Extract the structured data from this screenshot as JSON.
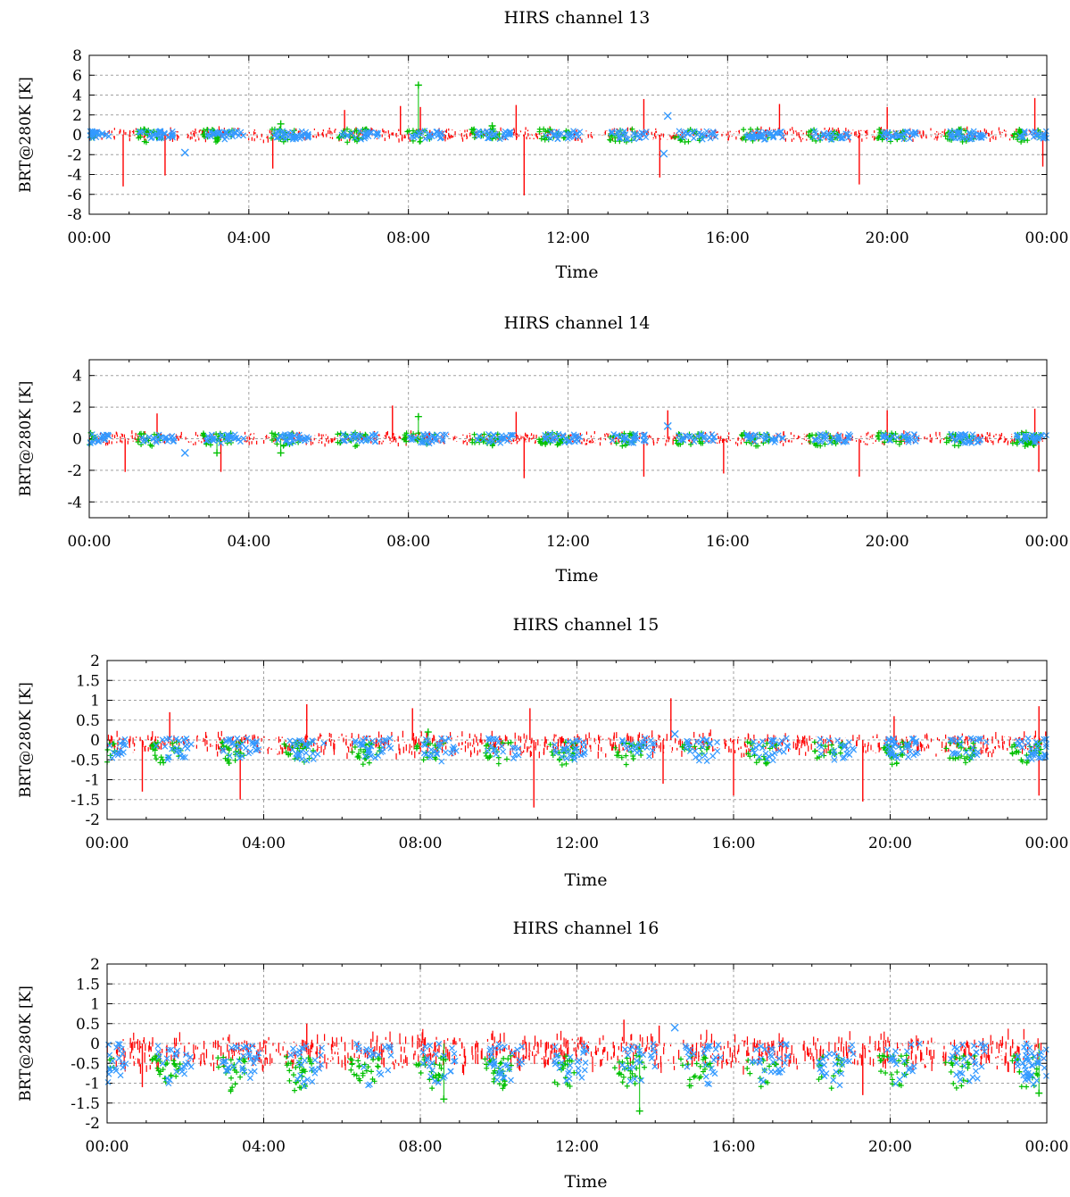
{
  "colors": {
    "red": "#ff0000",
    "green": "#00c000",
    "blue": "#3399ff",
    "grid": "#a0a0a0",
    "axis": "#000000"
  },
  "chart_data": [
    {
      "type": "scatter",
      "title": "HIRS channel 13",
      "xlabel": "Time",
      "ylabel": "BRT@280K [K]",
      "x_ticks": [
        "00:00",
        "04:00",
        "08:00",
        "12:00",
        "16:00",
        "20:00",
        "00:00"
      ],
      "y_ticks": [
        "-8",
        "-6",
        "-4",
        "-2",
        "0",
        "2",
        "4",
        "6",
        "8"
      ],
      "xlim": [
        "00:00",
        "24:00"
      ],
      "ylim": [
        -8,
        8
      ],
      "grid": true,
      "series": [
        {
          "color": "red",
          "marker": "line",
          "band": [
            -0.5,
            0.5
          ],
          "spikes": [
            [
              0.85,
              -5.2
            ],
            [
              1.9,
              -4.1
            ],
            [
              4.6,
              -3.4
            ],
            [
              6.4,
              2.5
            ],
            [
              7.8,
              2.9
            ],
            [
              8.3,
              2.8
            ],
            [
              10.9,
              -6.1
            ],
            [
              10.7,
              3.0
            ],
            [
              13.9,
              3.6
            ],
            [
              14.3,
              -4.3
            ],
            [
              17.3,
              3.1
            ],
            [
              19.3,
              -5.0
            ],
            [
              20.0,
              2.8
            ],
            [
              23.7,
              3.7
            ],
            [
              23.9,
              -3.2
            ]
          ]
        },
        {
          "color": "green",
          "marker": "plus",
          "band": [
            -0.8,
            0.6
          ],
          "spikes": [
            [
              8.25,
              5.0
            ],
            [
              4.8,
              1.1
            ],
            [
              10.1,
              0.9
            ]
          ]
        },
        {
          "color": "blue",
          "marker": "x",
          "band": [
            -0.5,
            0.4
          ],
          "spikes": [
            [
              14.5,
              1.9
            ],
            [
              14.4,
              -1.9
            ],
            [
              2.4,
              -1.8
            ]
          ]
        }
      ]
    },
    {
      "type": "scatter",
      "title": "HIRS channel 14",
      "xlabel": "Time",
      "ylabel": "BRT@280K [K]",
      "x_ticks": [
        "00:00",
        "04:00",
        "08:00",
        "12:00",
        "16:00",
        "20:00",
        "00:00"
      ],
      "y_ticks": [
        "-4",
        "-2",
        "0",
        "2",
        "4"
      ],
      "xlim": [
        "00:00",
        "24:00"
      ],
      "ylim": [
        -5,
        5
      ],
      "grid": true,
      "series": [
        {
          "color": "red",
          "marker": "line",
          "band": [
            -0.3,
            0.3
          ],
          "spikes": [
            [
              0.9,
              -2.1
            ],
            [
              1.7,
              1.6
            ],
            [
              3.3,
              -2.1
            ],
            [
              7.6,
              2.1
            ],
            [
              10.9,
              -2.5
            ],
            [
              10.7,
              1.7
            ],
            [
              13.9,
              -2.4
            ],
            [
              14.5,
              1.8
            ],
            [
              15.9,
              -2.2
            ],
            [
              19.3,
              -2.4
            ],
            [
              20.0,
              1.8
            ],
            [
              23.7,
              1.9
            ],
            [
              23.8,
              -2.1
            ]
          ]
        },
        {
          "color": "green",
          "marker": "plus",
          "band": [
            -0.5,
            0.4
          ],
          "spikes": [
            [
              8.25,
              1.4
            ],
            [
              3.2,
              -0.9
            ],
            [
              4.8,
              -0.9
            ]
          ]
        },
        {
          "color": "blue",
          "marker": "x",
          "band": [
            -0.3,
            0.3
          ],
          "spikes": [
            [
              14.5,
              0.8
            ],
            [
              2.4,
              -0.9
            ]
          ]
        }
      ]
    },
    {
      "type": "scatter",
      "title": "HIRS channel 15",
      "xlabel": "Time",
      "ylabel": "BRT@280K [K]",
      "x_ticks": [
        "00:00",
        "04:00",
        "08:00",
        "12:00",
        "16:00",
        "20:00",
        "00:00"
      ],
      "y_ticks": [
        "-2",
        "-1.5",
        "-1",
        "-0.5",
        "0",
        "0.5",
        "1",
        "1.5",
        "2"
      ],
      "xlim": [
        "00:00",
        "24:00"
      ],
      "ylim": [
        -2,
        2
      ],
      "grid": true,
      "series": [
        {
          "color": "red",
          "marker": "line",
          "band": [
            -0.35,
            0.1
          ],
          "spikes": [
            [
              0.9,
              -1.3
            ],
            [
              1.6,
              0.7
            ],
            [
              3.4,
              -1.5
            ],
            [
              5.1,
              0.9
            ],
            [
              7.8,
              0.8
            ],
            [
              10.9,
              -1.7
            ],
            [
              10.8,
              0.8
            ],
            [
              14.4,
              1.05
            ],
            [
              14.2,
              -1.1
            ],
            [
              16.0,
              -1.4
            ],
            [
              19.3,
              -1.55
            ],
            [
              20.1,
              0.6
            ],
            [
              23.8,
              0.85
            ],
            [
              23.8,
              -1.4
            ]
          ]
        },
        {
          "color": "green",
          "marker": "plus",
          "band": [
            -0.65,
            -0.05
          ],
          "spikes": [
            [
              8.2,
              0.2
            ]
          ]
        },
        {
          "color": "blue",
          "marker": "x",
          "band": [
            -0.55,
            0.05
          ],
          "spikes": [
            [
              14.5,
              0.15
            ]
          ]
        }
      ]
    },
    {
      "type": "scatter",
      "title": "HIRS channel 16",
      "xlabel": "Time",
      "ylabel": "BRT@280K [K]",
      "x_ticks": [
        "00:00",
        "04:00",
        "08:00",
        "12:00",
        "16:00",
        "20:00",
        "00:00"
      ],
      "y_ticks": [
        "-2",
        "-1.5",
        "-1",
        "-0.5",
        "0",
        "0.5",
        "1",
        "1.5",
        "2"
      ],
      "xlim": [
        "00:00",
        "24:00"
      ],
      "ylim": [
        -2,
        2
      ],
      "grid": true,
      "series": [
        {
          "color": "red",
          "marker": "line",
          "band": [
            -0.6,
            0.1
          ],
          "spikes": [
            [
              5.1,
              0.5
            ],
            [
              13.2,
              0.6
            ],
            [
              14.1,
              0.45
            ],
            [
              0.9,
              -1.1
            ],
            [
              19.3,
              -1.3
            ]
          ]
        },
        {
          "color": "green",
          "marker": "plus",
          "band": [
            -1.25,
            -0.3
          ],
          "spikes": [
            [
              13.6,
              -1.7
            ],
            [
              8.6,
              -1.4
            ],
            [
              23.8,
              -1.25
            ]
          ]
        },
        {
          "color": "blue",
          "marker": "x",
          "band": [
            -1.1,
            0.0
          ],
          "spikes": [
            [
              14.5,
              0.4
            ]
          ]
        }
      ]
    }
  ]
}
